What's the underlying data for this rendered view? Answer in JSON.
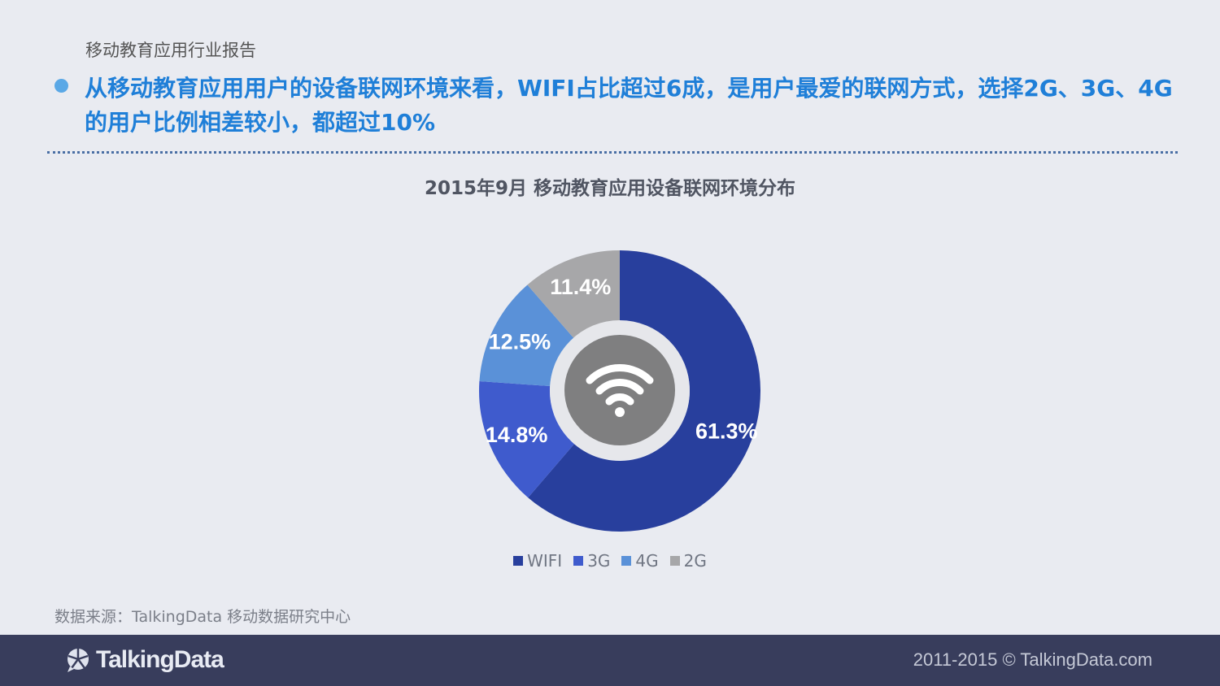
{
  "header": {
    "report_label": "移动教育应用行业报告",
    "headline": "从移动教育应用用户的设备联网环境来看，WIFI占比超过6成，是用户最爱的联网方式，选择2G、3G、4G的用户比例相差较小，都超过10%"
  },
  "chart_data": {
    "type": "pie",
    "donut": true,
    "title": "2015年9月  移动教育应用设备联网环境分布",
    "categories": [
      "WIFI",
      "3G",
      "4G",
      "2G"
    ],
    "values": [
      61.3,
      14.8,
      12.5,
      11.4
    ],
    "labels": [
      "61.3%",
      "14.8%",
      "12.5%",
      "11.4%"
    ],
    "colors": [
      "#283f9d",
      "#3f5bcd",
      "#5a91d8",
      "#a7a7a9"
    ],
    "legend_position": "bottom",
    "center_icon": "wifi-icon"
  },
  "footer": {
    "source": "数据来源：TalkingData 移动数据研究中心",
    "brand": "TalkingData",
    "copyright": "2011-2015 © TalkingData.com"
  }
}
